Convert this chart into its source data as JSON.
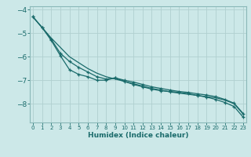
{
  "xlabel": "Humidex (Indice chaleur)",
  "background_color": "#cce8e8",
  "grid_color_major": "#b0d0d0",
  "grid_color_minor": "#c8e0e0",
  "line_color": "#1a6b6b",
  "x_values": [
    0,
    1,
    2,
    3,
    4,
    5,
    6,
    7,
    8,
    9,
    10,
    11,
    12,
    13,
    14,
    15,
    16,
    17,
    18,
    19,
    20,
    21,
    22,
    23
  ],
  "line1_y": [
    -4.3,
    -4.75,
    -5.2,
    -5.6,
    -6.0,
    -6.25,
    -6.5,
    -6.7,
    -6.85,
    -6.95,
    -7.05,
    -7.15,
    -7.25,
    -7.35,
    -7.42,
    -7.5,
    -7.55,
    -7.6,
    -7.65,
    -7.7,
    -7.75,
    -7.85,
    -8.0,
    -8.45
  ],
  "line2_y": [
    -4.3,
    -4.75,
    -5.25,
    -5.85,
    -6.2,
    -6.45,
    -6.65,
    -6.85,
    -6.95,
    -6.9,
    -7.0,
    -7.08,
    -7.18,
    -7.28,
    -7.35,
    -7.42,
    -7.48,
    -7.52,
    -7.58,
    -7.63,
    -7.7,
    -7.82,
    -7.98,
    -8.42
  ],
  "line3_y": [
    -4.3,
    -4.75,
    -5.3,
    -5.95,
    -6.55,
    -6.75,
    -6.85,
    -7.0,
    -7.0,
    -6.9,
    -7.05,
    -7.18,
    -7.28,
    -7.38,
    -7.45,
    -7.48,
    -7.52,
    -7.57,
    -7.65,
    -7.72,
    -7.82,
    -7.95,
    -8.12,
    -8.58
  ],
  "ylim": [
    -8.8,
    -3.85
  ],
  "xlim": [
    -0.3,
    23.3
  ],
  "yticks": [
    -8,
    -7,
    -6,
    -5,
    -4
  ],
  "xticks": [
    0,
    1,
    2,
    3,
    4,
    5,
    6,
    7,
    8,
    9,
    10,
    11,
    12,
    13,
    14,
    15,
    16,
    17,
    18,
    19,
    20,
    21,
    22,
    23
  ]
}
